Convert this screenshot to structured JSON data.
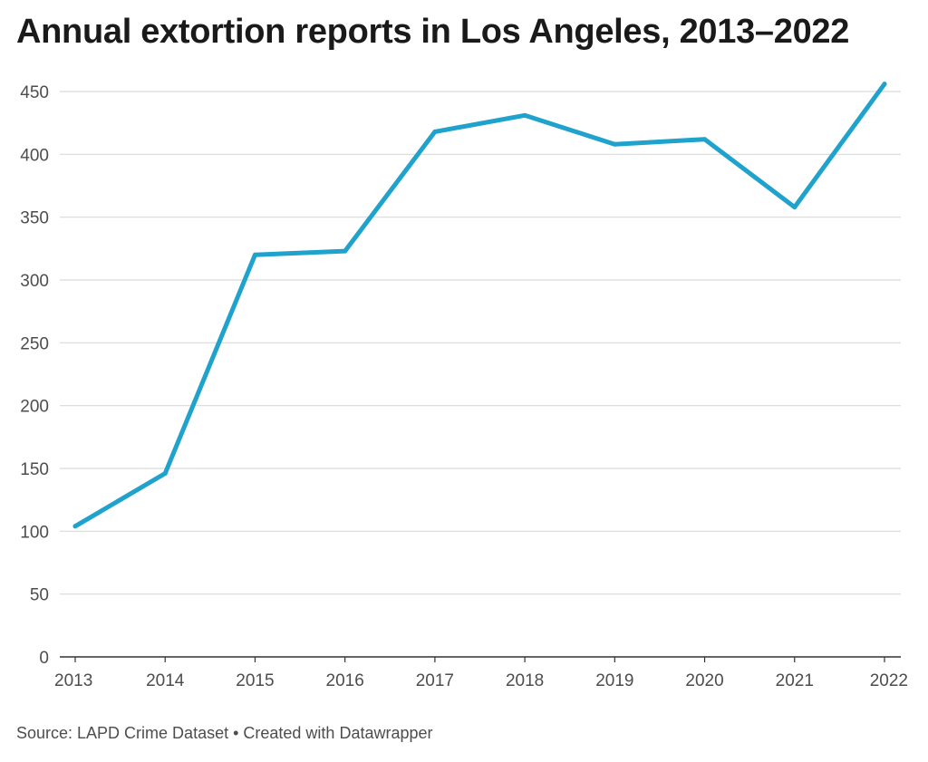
{
  "title": "Annual extortion reports in Los Angeles, 2013–2022",
  "source_line": "Source: LAPD Crime Dataset • Created with Datawrapper",
  "colors": {
    "line": "#1fa2cb",
    "grid": "#d9d9d9",
    "axis": "#333333",
    "text": "#4d4d4d"
  },
  "chart_data": {
    "type": "line",
    "title": "Annual extortion reports in Los Angeles, 2013–2022",
    "xlabel": "",
    "ylabel": "",
    "ylim": [
      0,
      450
    ],
    "yticks": [
      0,
      50,
      100,
      150,
      200,
      250,
      300,
      350,
      400,
      450
    ],
    "grid": true,
    "legend": "none",
    "x": [
      "2013",
      "2014",
      "2015",
      "2016",
      "2017",
      "2018",
      "2019",
      "2020",
      "2021",
      "2022"
    ],
    "series": [
      {
        "values": [
          104,
          146,
          320,
          323,
          418,
          431,
          408,
          412,
          358,
          456
        ]
      }
    ]
  }
}
